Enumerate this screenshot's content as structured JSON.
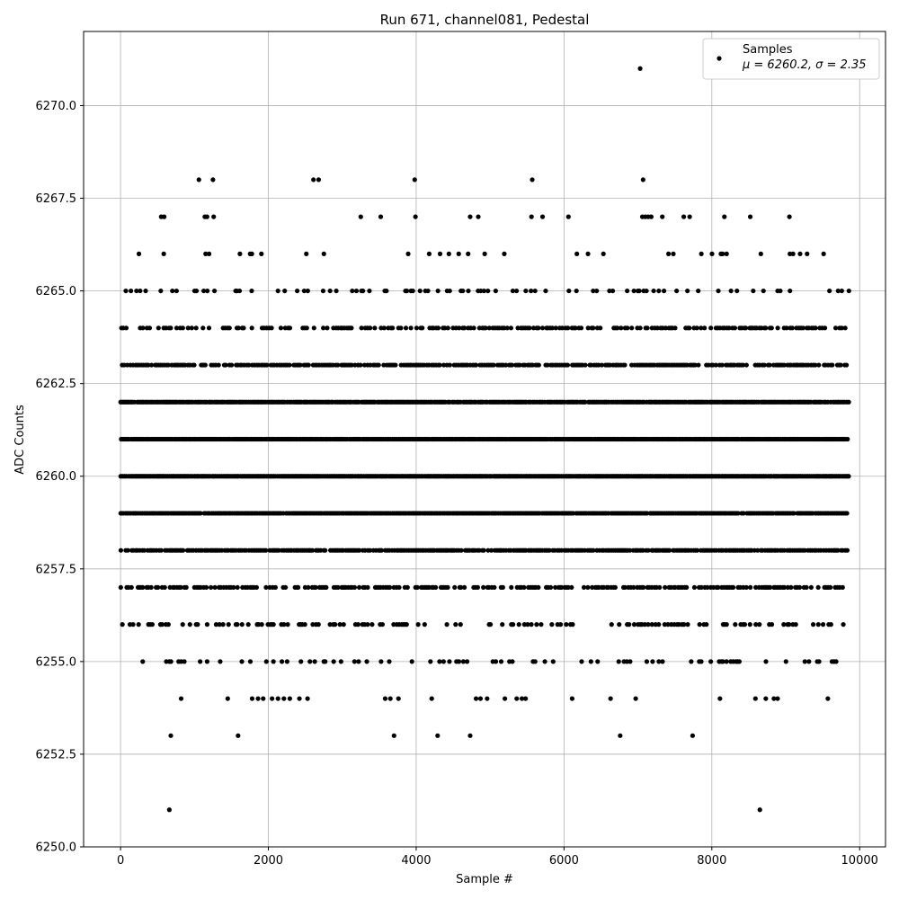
{
  "chart_data": {
    "type": "scatter",
    "title": "Run 671, channel081, Pedestal",
    "xlabel": "Sample #",
    "ylabel": "ADC Counts",
    "xlim": [
      -500,
      10350
    ],
    "ylim": [
      6250.0,
      6272.0
    ],
    "xticks": [
      0,
      2000,
      4000,
      6000,
      8000,
      10000
    ],
    "xtick_labels": [
      "0",
      "2000",
      "4000",
      "6000",
      "8000",
      "10000"
    ],
    "yticks": [
      6250.0,
      6252.5,
      6255.0,
      6257.5,
      6260.0,
      6262.5,
      6265.0,
      6267.5,
      6270.0
    ],
    "ytick_labels": [
      "6250.0",
      "6252.5",
      "6255.0",
      "6257.5",
      "6260.0",
      "6262.5",
      "6265.0",
      "6267.5",
      "6270.0"
    ],
    "grid": true,
    "legend": {
      "placement": "top-right",
      "entries": [
        "Samples",
        "μ = 6260.2, σ = 2.35"
      ]
    },
    "marker_color": "#000000",
    "series": [
      {
        "name": "Samples",
        "points": [
          [
            7030,
            6271
          ],
          [
            1060,
            6268
          ],
          [
            1250,
            6268
          ],
          [
            2610,
            6268
          ],
          [
            2680,
            6268
          ],
          [
            3980,
            6268
          ],
          [
            5570,
            6268
          ],
          [
            7070,
            6268
          ],
          [
            550,
            6267
          ],
          [
            590,
            6267
          ],
          [
            1140,
            6267
          ],
          [
            1170,
            6267
          ],
          [
            1260,
            6267
          ],
          [
            3250,
            6267
          ],
          [
            3520,
            6267
          ],
          [
            3990,
            6267
          ],
          [
            4730,
            6267
          ],
          [
            4840,
            6267
          ],
          [
            5560,
            6267
          ],
          [
            5710,
            6267
          ],
          [
            6060,
            6267
          ],
          [
            7060,
            6267
          ],
          [
            7100,
            6267
          ],
          [
            7140,
            6267
          ],
          [
            7180,
            6267
          ],
          [
            7330,
            6267
          ],
          [
            7620,
            6267
          ],
          [
            7700,
            6267
          ],
          [
            8170,
            6267
          ],
          [
            8520,
            6267
          ],
          [
            9050,
            6267
          ],
          [
            660,
            6251
          ],
          [
            8650,
            6251
          ],
          [
            680,
            6253
          ],
          [
            1590,
            6253
          ],
          [
            3700,
            6253
          ],
          [
            4290,
            6253
          ],
          [
            4730,
            6253
          ],
          [
            6760,
            6253
          ],
          [
            7740,
            6253
          ],
          [
            820,
            6254
          ],
          [
            1450,
            6254
          ],
          [
            1780,
            6254
          ],
          [
            1860,
            6254
          ],
          [
            1930,
            6254
          ],
          [
            2050,
            6254
          ],
          [
            2130,
            6254
          ],
          [
            2210,
            6254
          ],
          [
            2290,
            6254
          ],
          [
            2420,
            6254
          ],
          [
            2530,
            6254
          ],
          [
            3580,
            6254
          ],
          [
            3650,
            6254
          ],
          [
            3760,
            6254
          ],
          [
            4210,
            6254
          ],
          [
            4810,
            6254
          ],
          [
            4870,
            6254
          ],
          [
            4960,
            6254
          ],
          [
            5200,
            6254
          ],
          [
            5360,
            6254
          ],
          [
            5430,
            6254
          ],
          [
            5480,
            6254
          ],
          [
            6110,
            6254
          ],
          [
            6630,
            6254
          ],
          [
            6970,
            6254
          ],
          [
            8110,
            6254
          ],
          [
            8590,
            6254
          ],
          [
            8730,
            6254
          ],
          [
            8840,
            6254
          ],
          [
            8890,
            6254
          ],
          [
            9570,
            6254
          ]
        ]
      }
    ]
  }
}
